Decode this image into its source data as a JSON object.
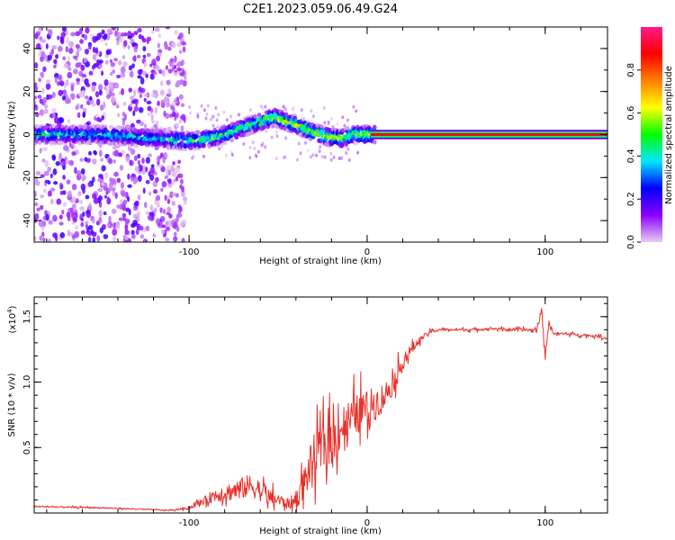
{
  "chart_data": [
    {
      "type": "heatmap",
      "title": "C2E1.2023.059.06.49.G24",
      "xlabel": "Height of straight line (km)",
      "ylabel": "Frequency (Hz)",
      "xlim": [
        -187,
        135
      ],
      "ylim": [
        -50,
        50
      ],
      "xticks": [
        -100,
        0,
        100
      ],
      "xtick_labels": [
        "-100",
        "0",
        "100"
      ],
      "yticks": [
        -40,
        -20,
        0,
        20,
        40
      ],
      "ytick_labels": [
        "-40",
        "-20",
        "0",
        "20",
        "40"
      ],
      "colorbar": {
        "label": "Normalized spectral amplitude",
        "range": [
          0,
          1
        ],
        "ticks": [
          0.0,
          0.2,
          0.4,
          0.6,
          0.8
        ],
        "tick_labels": [
          "0.0",
          "0.2",
          "0.4",
          "0.6",
          "0.8"
        ],
        "colormap": [
          "#e6ccf2",
          "#8a00ff",
          "#0000ff",
          "#00e5ff",
          "#00ff00",
          "#ffff00",
          "#ff8000",
          "#ff0000",
          "#ff1a8c"
        ]
      },
      "ridge": [
        [
          -187,
          0
        ],
        [
          -150,
          0
        ],
        [
          -115,
          -2
        ],
        [
          -100,
          -3
        ],
        [
          -90,
          -2
        ],
        [
          -80,
          0
        ],
        [
          -70,
          3
        ],
        [
          -60,
          6
        ],
        [
          -52,
          8
        ],
        [
          -45,
          6
        ],
        [
          -38,
          4
        ],
        [
          -30,
          1
        ],
        [
          -22,
          -1
        ],
        [
          -15,
          -2
        ],
        [
          -8,
          0
        ],
        [
          0,
          0
        ],
        [
          135,
          0
        ]
      ],
      "grid": false
    },
    {
      "type": "line",
      "xlabel": "Height of straight line (km)",
      "ylabel": "SNR (10 * v/v)",
      "y_exponent_label": "(x10",
      "y_exponent_sup": "4",
      "y_exponent_close": ")",
      "xlim": [
        -187,
        135
      ],
      "ylim": [
        0,
        16500
      ],
      "xticks": [
        -100,
        0,
        100
      ],
      "xtick_labels": [
        "-100",
        "0",
        "100"
      ],
      "yticks": [
        5000,
        10000,
        15000
      ],
      "ytick_labels": [
        "0.5",
        "1.0",
        "1.5"
      ],
      "series": [
        {
          "color": "#e8302a",
          "x": [
            -187,
            -170,
            -150,
            -130,
            -110,
            -100,
            -92,
            -85,
            -78,
            -70,
            -65,
            -60,
            -55,
            -50,
            -45,
            -40,
            -35,
            -30,
            -25,
            -20,
            -15,
            -10,
            -5,
            0,
            5,
            10,
            15,
            20,
            25,
            30,
            35,
            40,
            50,
            60,
            70,
            80,
            90,
            95,
            98,
            100,
            102,
            105,
            110,
            120,
            130,
            135
          ],
          "y": [
            500,
            450,
            400,
            300,
            200,
            400,
            900,
            1400,
            1600,
            1900,
            2100,
            1700,
            1200,
            1000,
            700,
            900,
            2500,
            4200,
            5000,
            5500,
            6500,
            7000,
            7600,
            8000,
            8400,
            9000,
            10000,
            11500,
            12500,
            13300,
            13800,
            14000,
            14000,
            14000,
            14100,
            14000,
            14000,
            13900,
            15500,
            12000,
            14500,
            13700,
            13700,
            13600,
            13500,
            13300
          ],
          "noise": [
            80,
            80,
            80,
            60,
            60,
            150,
            400,
            800,
            1000,
            1200,
            1300,
            1100,
            900,
            700,
            600,
            900,
            1800,
            2500,
            2700,
            2600,
            2500,
            2400,
            2200,
            2000,
            1800,
            1500,
            1200,
            900,
            600,
            300,
            200,
            150,
            150,
            150,
            150,
            150,
            200,
            300,
            400,
            400,
            300,
            150,
            150,
            150,
            150,
            150
          ]
        }
      ],
      "grid": false
    }
  ]
}
